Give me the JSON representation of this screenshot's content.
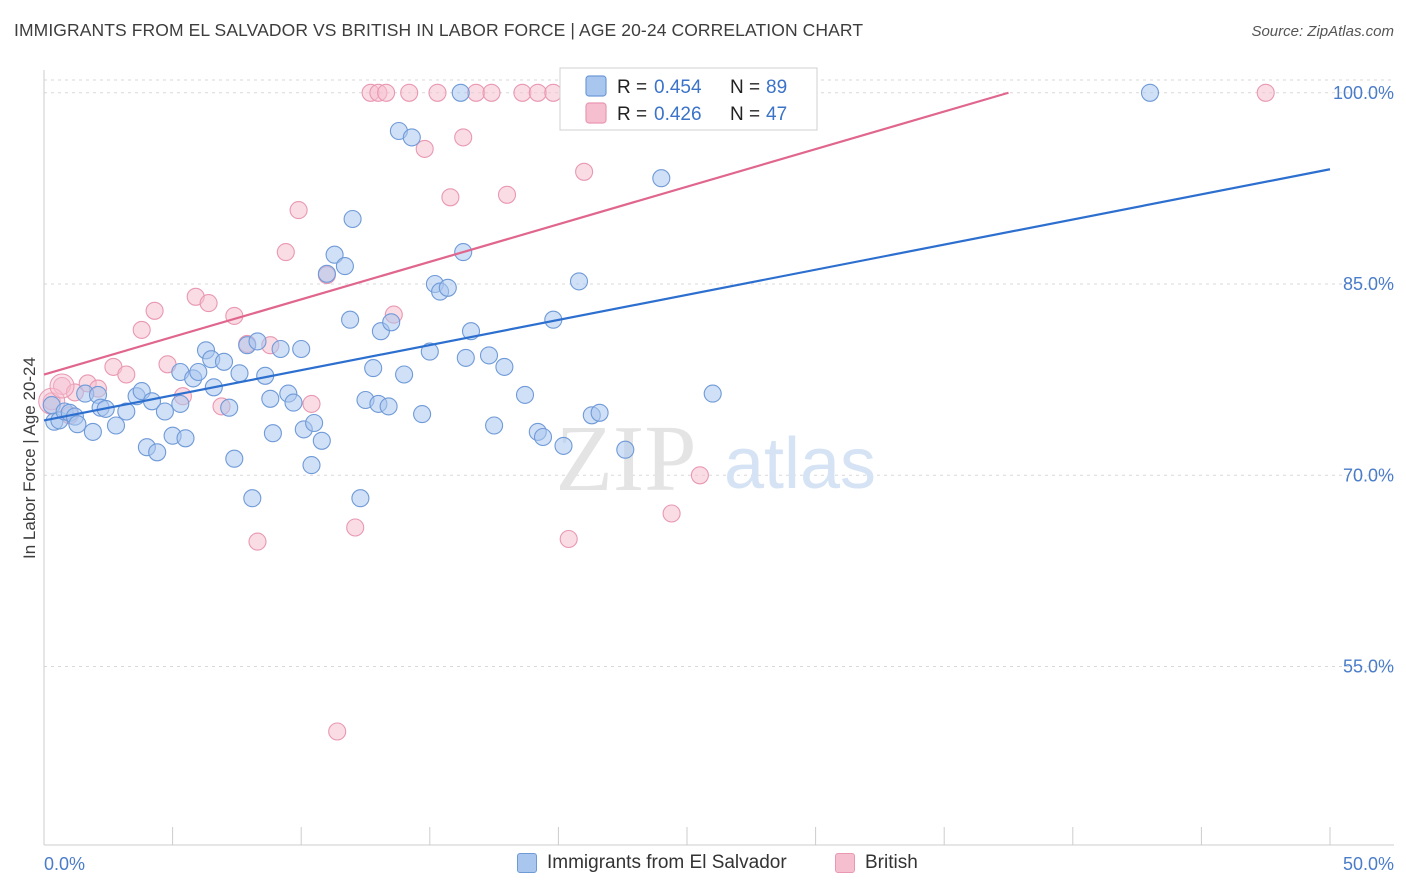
{
  "header": {
    "title": "IMMIGRANTS FROM EL SALVADOR VS BRITISH IN LABOR FORCE | AGE 20-24 CORRELATION CHART",
    "source": "Source: ZipAtlas.com"
  },
  "watermark": {
    "zip": "ZIP",
    "atlas": "atlas"
  },
  "colors": {
    "blue_fill": "#a9c6ee",
    "blue_stroke": "#6f9ad8",
    "blue_line": "#2d6fcf",
    "pink_fill": "#f6bfd0",
    "pink_stroke": "#e998b2",
    "pink_line": "#e0668d",
    "grid": "#d9d9d9",
    "tick_label": "#4a7cc9"
  },
  "legend": {
    "r_label": "R =",
    "n_label": "N =",
    "blue": {
      "r": "0.454",
      "n": "89"
    },
    "pink": {
      "r": "0.426",
      "n": "47"
    }
  },
  "chart_data": {
    "type": "scatter",
    "title": "IMMIGRANTS FROM EL SALVADOR VS BRITISH IN LABOR FORCE | AGE 20-24 CORRELATION CHART",
    "xlabel": "",
    "ylabel": "In Labor Force | Age 20-24",
    "xlim": [
      0,
      50
    ],
    "ylim": [
      41,
      101
    ],
    "x_tick_labels": [
      "0.0%",
      "50.0%"
    ],
    "y_ticks": [
      {
        "value": 100,
        "label": "100.0%"
      },
      {
        "value": 85,
        "label": "85.0%"
      },
      {
        "value": 70,
        "label": "70.0%"
      },
      {
        "value": 55,
        "label": "55.0%"
      }
    ],
    "grid": true,
    "legend_position": "top-center",
    "series": [
      {
        "name": "Immigrants from El Salvador",
        "color": "#a9c6ee",
        "r": 0.454,
        "n": 89,
        "trend": {
          "x": [
            0,
            50
          ],
          "y": [
            74.3,
            94.0
          ]
        },
        "points": [
          [
            0.3,
            75.5
          ],
          [
            0.4,
            74.2
          ],
          [
            0.6,
            74.3
          ],
          [
            0.8,
            75.0
          ],
          [
            1.0,
            74.9
          ],
          [
            1.2,
            74.6
          ],
          [
            1.3,
            74.0
          ],
          [
            1.6,
            76.4
          ],
          [
            1.9,
            73.4
          ],
          [
            2.1,
            76.3
          ],
          [
            2.2,
            75.3
          ],
          [
            2.4,
            75.2
          ],
          [
            2.8,
            73.9
          ],
          [
            3.2,
            75.0
          ],
          [
            3.6,
            76.2
          ],
          [
            3.8,
            76.6
          ],
          [
            4.0,
            72.2
          ],
          [
            4.2,
            75.8
          ],
          [
            4.4,
            71.8
          ],
          [
            4.7,
            75.0
          ],
          [
            5.0,
            73.1
          ],
          [
            5.3,
            75.6
          ],
          [
            5.3,
            78.1
          ],
          [
            5.5,
            72.9
          ],
          [
            5.8,
            77.6
          ],
          [
            6.0,
            78.1
          ],
          [
            6.3,
            79.8
          ],
          [
            6.5,
            79.1
          ],
          [
            6.6,
            76.9
          ],
          [
            7.0,
            78.9
          ],
          [
            7.2,
            75.3
          ],
          [
            7.4,
            71.3
          ],
          [
            7.6,
            78.0
          ],
          [
            7.9,
            80.2
          ],
          [
            8.1,
            68.2
          ],
          [
            8.3,
            80.5
          ],
          [
            8.6,
            77.8
          ],
          [
            8.8,
            76.0
          ],
          [
            8.9,
            73.3
          ],
          [
            9.2,
            79.9
          ],
          [
            9.5,
            76.4
          ],
          [
            9.7,
            75.7
          ],
          [
            10.0,
            79.9
          ],
          [
            10.1,
            73.6
          ],
          [
            10.4,
            70.8
          ],
          [
            10.5,
            74.1
          ],
          [
            10.8,
            72.7
          ],
          [
            11.0,
            85.8
          ],
          [
            11.3,
            87.3
          ],
          [
            11.7,
            86.4
          ],
          [
            11.9,
            82.2
          ],
          [
            12.0,
            90.1
          ],
          [
            12.3,
            68.2
          ],
          [
            12.5,
            75.9
          ],
          [
            12.8,
            78.4
          ],
          [
            13.0,
            75.6
          ],
          [
            13.1,
            81.3
          ],
          [
            13.4,
            75.4
          ],
          [
            13.5,
            82.0
          ],
          [
            13.8,
            97.0
          ],
          [
            14.0,
            77.9
          ],
          [
            14.3,
            96.5
          ],
          [
            14.7,
            74.8
          ],
          [
            15.0,
            79.7
          ],
          [
            15.2,
            85.0
          ],
          [
            15.4,
            84.4
          ],
          [
            15.7,
            84.7
          ],
          [
            16.2,
            100.0
          ],
          [
            16.3,
            87.5
          ],
          [
            16.4,
            79.2
          ],
          [
            16.6,
            81.3
          ],
          [
            17.3,
            79.4
          ],
          [
            17.5,
            73.9
          ],
          [
            17.9,
            78.5
          ],
          [
            18.7,
            76.3
          ],
          [
            19.2,
            73.4
          ],
          [
            19.4,
            73.0
          ],
          [
            19.8,
            82.2
          ],
          [
            20.2,
            72.3
          ],
          [
            20.8,
            85.2
          ],
          [
            21.3,
            74.7
          ],
          [
            21.6,
            74.9
          ],
          [
            22.6,
            72.0
          ],
          [
            24.0,
            93.3
          ],
          [
            26.0,
            76.4
          ],
          [
            43.0,
            100.0
          ]
        ]
      },
      {
        "name": "British",
        "color": "#f6bfd0",
        "r": 0.426,
        "n": 47,
        "trend": {
          "x": [
            0,
            37.5
          ],
          "y": [
            77.9,
            100.0
          ]
        },
        "points": [
          [
            0.3,
            75.8
          ],
          [
            0.7,
            77.0
          ],
          [
            1.0,
            74.7
          ],
          [
            1.2,
            76.5
          ],
          [
            1.7,
            77.2
          ],
          [
            2.1,
            76.8
          ],
          [
            2.7,
            78.5
          ],
          [
            3.2,
            77.9
          ],
          [
            3.8,
            81.4
          ],
          [
            4.3,
            82.9
          ],
          [
            4.8,
            78.7
          ],
          [
            5.4,
            76.2
          ],
          [
            5.9,
            84.0
          ],
          [
            6.4,
            83.5
          ],
          [
            6.9,
            75.4
          ],
          [
            7.4,
            82.5
          ],
          [
            7.9,
            80.3
          ],
          [
            8.3,
            64.8
          ],
          [
            8.8,
            80.2
          ],
          [
            9.4,
            87.5
          ],
          [
            9.9,
            90.8
          ],
          [
            10.4,
            75.6
          ],
          [
            11.0,
            85.7
          ],
          [
            11.4,
            49.9
          ],
          [
            12.1,
            65.9
          ],
          [
            12.7,
            100.0
          ],
          [
            13.0,
            100.0
          ],
          [
            13.3,
            100.0
          ],
          [
            13.6,
            82.6
          ],
          [
            14.2,
            100.0
          ],
          [
            14.8,
            95.6
          ],
          [
            15.3,
            100.0
          ],
          [
            15.8,
            91.8
          ],
          [
            16.3,
            96.5
          ],
          [
            16.8,
            100.0
          ],
          [
            17.4,
            100.0
          ],
          [
            18.0,
            92.0
          ],
          [
            18.6,
            100.0
          ],
          [
            19.2,
            100.0
          ],
          [
            19.8,
            100.0
          ],
          [
            20.4,
            65.0
          ],
          [
            21.0,
            93.8
          ],
          [
            24.4,
            67.0
          ],
          [
            25.5,
            70.0
          ],
          [
            27.2,
            100.0
          ],
          [
            47.5,
            100.0
          ]
        ]
      }
    ]
  }
}
